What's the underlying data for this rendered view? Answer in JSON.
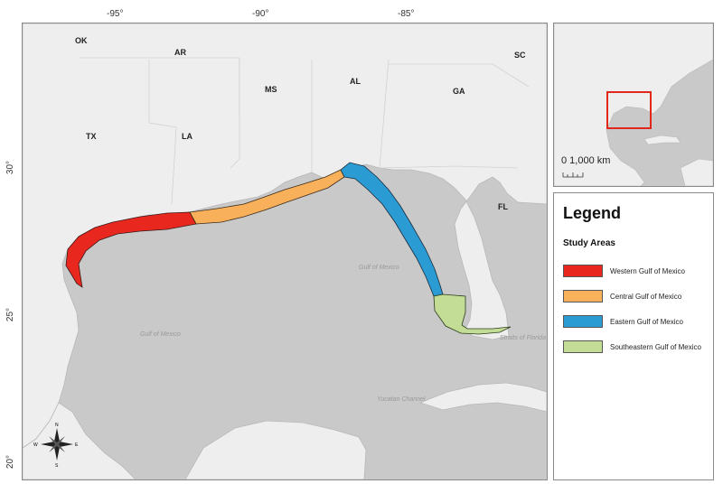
{
  "axes": {
    "longitude_ticks": [
      "-95°",
      "-90°",
      "-85°"
    ],
    "latitude_ticks": [
      "30°",
      "25°",
      "20°"
    ]
  },
  "states": [
    "OK",
    "AR",
    "MS",
    "AL",
    "GA",
    "SC",
    "TX",
    "LA",
    "FL"
  ],
  "water_labels": {
    "gulf_center": "Gulf of Mexico",
    "gulf_west": "Gulf of Mexico",
    "straits": "Straits of Florida",
    "yucatan": "Yucatan Channel"
  },
  "compass": {
    "n": "N",
    "s": "S",
    "e": "E",
    "w": "W"
  },
  "inset": {
    "scale_label": "0 1,000 km"
  },
  "legend": {
    "title": "Legend",
    "subtitle": "Study Areas",
    "items": [
      {
        "label": "Western Gulf of Mexico",
        "color": "#e8281e"
      },
      {
        "label": "Central Gulf of Mexico",
        "color": "#f9b05a"
      },
      {
        "label": "Eastern Gulf of Mexico",
        "color": "#2b9bd3"
      },
      {
        "label": "Southeastern Gulf of Mexico",
        "color": "#c4dd96"
      }
    ]
  },
  "colors": {
    "water": "#c9c9ca",
    "land": "#eeeeee",
    "border": "#8a8a8a",
    "inset_highlight": "#e1261c"
  }
}
